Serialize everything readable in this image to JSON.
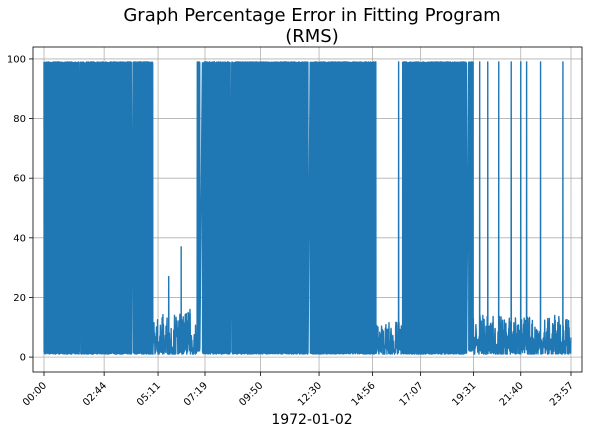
{
  "chart_data": {
    "type": "line",
    "title_lines": [
      "Graph Percentage Error in Fitting Program",
      "(RMS)"
    ],
    "xlabel": "1972-01-02",
    "ylabel": "",
    "x_range_minutes": [
      -30,
      1467
    ],
    "ylim": [
      -5,
      104
    ],
    "grid": true,
    "color": "#1f77b4",
    "xticks": [
      {
        "label": "00:00",
        "minute": 0
      },
      {
        "label": "02:44",
        "minute": 164
      },
      {
        "label": "05:11",
        "minute": 311
      },
      {
        "label": "07:19",
        "minute": 439
      },
      {
        "label": "09:50",
        "minute": 590
      },
      {
        "label": "12:30",
        "minute": 750
      },
      {
        "label": "14:56",
        "minute": 896
      },
      {
        "label": "17:07",
        "minute": 1027
      },
      {
        "label": "19:31",
        "minute": 1171
      },
      {
        "label": "21:40",
        "minute": 1300
      },
      {
        "label": "23:57",
        "minute": 1437
      }
    ],
    "yticks": [
      0,
      20,
      40,
      60,
      80,
      100
    ],
    "dense_oscillation_segments": [
      {
        "start_minute": 0,
        "end_minute": 96,
        "low": 1,
        "high": 99
      },
      {
        "start_minute": 100,
        "end_minute": 238,
        "low": 1,
        "high": 99
      },
      {
        "start_minute": 243,
        "end_minute": 297,
        "low": 1,
        "high": 99
      },
      {
        "start_minute": 418,
        "end_minute": 425,
        "low": 2,
        "high": 99
      },
      {
        "start_minute": 432,
        "end_minute": 508,
        "low": 1,
        "high": 99
      },
      {
        "start_minute": 512,
        "end_minute": 720,
        "low": 1,
        "high": 99
      },
      {
        "start_minute": 726,
        "end_minute": 905,
        "low": 1,
        "high": 99
      },
      {
        "start_minute": 978,
        "end_minute": 1152,
        "low": 1,
        "high": 99
      },
      {
        "start_minute": 1158,
        "end_minute": 1170,
        "low": 2,
        "high": 99
      }
    ],
    "isolated_spikes": [
      {
        "minute": 340,
        "value": 27
      },
      {
        "minute": 374,
        "value": 37
      },
      {
        "minute": 398,
        "value": 16
      },
      {
        "minute": 967,
        "value": 99
      },
      {
        "minute": 1188,
        "value": 99
      },
      {
        "minute": 1210,
        "value": 99
      },
      {
        "minute": 1240,
        "value": 99
      },
      {
        "minute": 1274,
        "value": 99
      },
      {
        "minute": 1300,
        "value": 99
      },
      {
        "minute": 1316,
        "value": 99
      },
      {
        "minute": 1354,
        "value": 99
      },
      {
        "minute": 1415,
        "value": 99
      }
    ],
    "noise_segments": [
      {
        "start_minute": 297,
        "end_minute": 418,
        "low": 1,
        "high": 15
      },
      {
        "start_minute": 905,
        "end_minute": 978,
        "low": 1,
        "high": 12
      },
      {
        "start_minute": 1170,
        "end_minute": 1437,
        "low": 1,
        "high": 14
      }
    ]
  }
}
